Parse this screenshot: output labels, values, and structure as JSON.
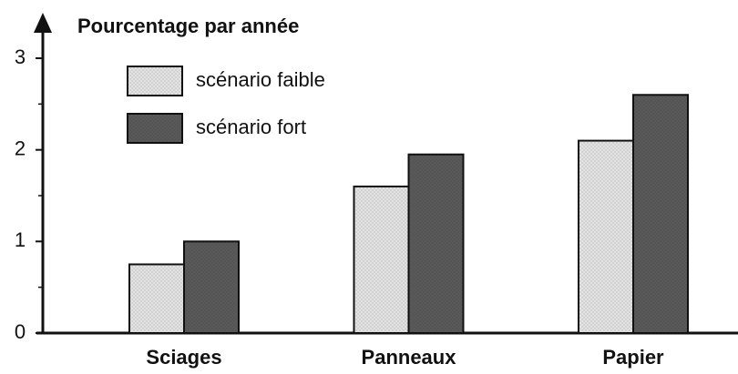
{
  "chart_data": {
    "type": "bar",
    "title": "Pourcentage par année",
    "categories": [
      "Sciages",
      "Panneaux",
      "Papier"
    ],
    "series": [
      {
        "name": "scénario faible",
        "color": "#e2e2e2",
        "values": [
          0.75,
          1.6,
          2.1
        ]
      },
      {
        "name": "scénario fort",
        "color": "#5a5a5a",
        "values": [
          1.0,
          1.95,
          2.6
        ]
      }
    ],
    "ylim": [
      0,
      3
    ],
    "yticks": [
      0,
      1,
      2,
      3
    ],
    "legend": "upper left"
  }
}
